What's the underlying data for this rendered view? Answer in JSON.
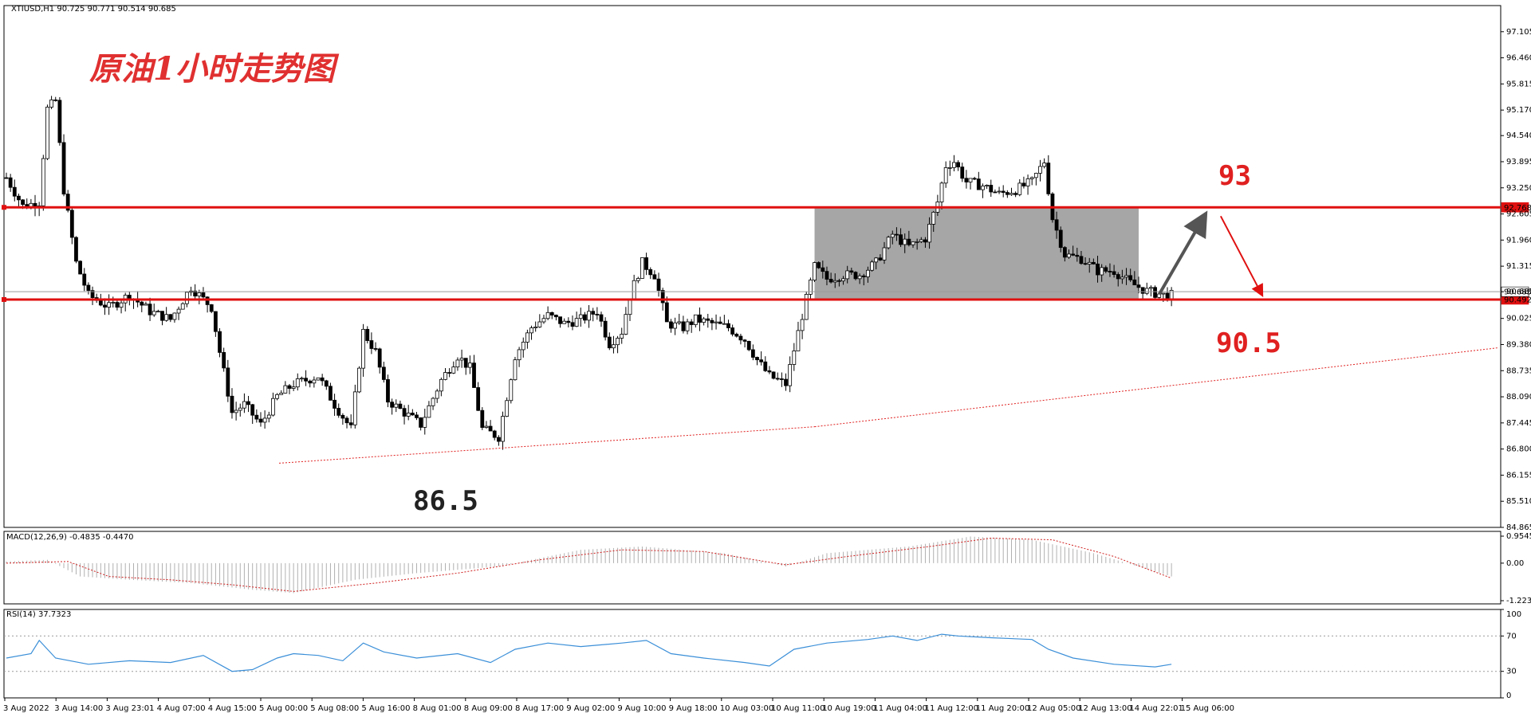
{
  "header": {
    "symbol_info": "XTIUSD,H1  90.725 90.771 90.514 90.685",
    "macd_label": "MACD(12,26,9) -0.4835 -0.4470",
    "rsi_label": "RSI(14) 37.7323"
  },
  "chart_data": {
    "type": "candlestick",
    "title": "原油1小时走势图",
    "price_axis": {
      "ylim": [
        84.865,
        97.75
      ],
      "ticks": [
        "97.105",
        "96.460",
        "95.815",
        "95.170",
        "94.540",
        "93.895",
        "93.250",
        "92.605",
        "91.960",
        "91.315",
        "90.685",
        "90.025",
        "89.380",
        "88.735",
        "88.090",
        "87.445",
        "86.800",
        "86.155",
        "85.510",
        "84.865"
      ]
    },
    "resistance": {
      "value": 92.768,
      "label": "92.768"
    },
    "support": {
      "value": 90.492,
      "label": "90.492"
    },
    "current_price": {
      "value": 90.685,
      "label": "90.685"
    },
    "annotations": {
      "top_target": "93",
      "bottom_target": "90.5",
      "low_mark": "86.5"
    },
    "x_ticks": [
      "3 Aug 2022",
      "3 Aug 14:00",
      "3 Aug 23:01",
      "4 Aug 07:00",
      "4 Aug 15:00",
      "5 Aug 00:00",
      "5 Aug 08:00",
      "5 Aug 16:00",
      "8 Aug 01:00",
      "8 Aug 09:00",
      "8 Aug 17:00",
      "9 Aug 02:00",
      "9 Aug 10:00",
      "9 Aug 18:00",
      "10 Aug 03:00",
      "10 Aug 11:00",
      "10 Aug 19:00",
      "11 Aug 04:00",
      "11 Aug 12:00",
      "11 Aug 20:00",
      "12 Aug 05:00",
      "12 Aug 13:00",
      "14 Aug 22:01",
      "15 Aug 06:00"
    ],
    "close_path": [
      [
        0,
        93.5
      ],
      [
        4,
        92.8
      ],
      [
        8,
        92.9
      ],
      [
        10,
        95.2
      ],
      [
        12,
        95.4
      ],
      [
        14,
        93.2
      ],
      [
        17,
        91.4
      ],
      [
        20,
        90.6
      ],
      [
        25,
        90.3
      ],
      [
        30,
        90.6
      ],
      [
        35,
        90.2
      ],
      [
        40,
        90.0
      ],
      [
        45,
        90.8
      ],
      [
        50,
        90.3
      ],
      [
        52,
        89.2
      ],
      [
        55,
        87.7
      ],
      [
        58,
        87.9
      ],
      [
        62,
        87.4
      ],
      [
        66,
        88.1
      ],
      [
        70,
        88.4
      ],
      [
        76,
        88.6
      ],
      [
        80,
        87.9
      ],
      [
        84,
        87.3
      ],
      [
        87,
        89.7
      ],
      [
        90,
        89.2
      ],
      [
        93,
        88.0
      ],
      [
        97,
        87.7
      ],
      [
        101,
        87.4
      ],
      [
        106,
        88.5
      ],
      [
        110,
        89.1
      ],
      [
        113,
        88.8
      ],
      [
        116,
        87.3
      ],
      [
        120,
        87.1
      ],
      [
        124,
        89.1
      ],
      [
        128,
        89.8
      ],
      [
        132,
        90.1
      ],
      [
        136,
        89.9
      ],
      [
        140,
        90.0
      ],
      [
        144,
        90.2
      ],
      [
        147,
        89.4
      ],
      [
        150,
        89.7
      ],
      [
        152,
        90.6
      ],
      [
        155,
        91.4
      ],
      [
        158,
        91.1
      ],
      [
        161,
        89.9
      ],
      [
        165,
        89.8
      ],
      [
        168,
        90.0
      ],
      [
        172,
        89.9
      ],
      [
        176,
        89.8
      ],
      [
        180,
        89.5
      ],
      [
        183,
        89.0
      ],
      [
        186,
        88.6
      ],
      [
        190,
        88.4
      ],
      [
        194,
        90.1
      ],
      [
        197,
        91.3
      ],
      [
        200,
        91.0
      ],
      [
        204,
        91.1
      ],
      [
        208,
        91.1
      ],
      [
        212,
        91.4
      ],
      [
        216,
        92.1
      ],
      [
        220,
        91.8
      ],
      [
        224,
        92.0
      ],
      [
        227,
        92.9
      ],
      [
        229,
        93.8
      ],
      [
        231,
        93.9
      ],
      [
        234,
        93.4
      ],
      [
        238,
        93.3
      ],
      [
        242,
        93.1
      ],
      [
        246,
        93.2
      ],
      [
        250,
        93.4
      ],
      [
        253,
        93.9
      ],
      [
        255,
        92.5
      ],
      [
        258,
        91.6
      ],
      [
        262,
        91.5
      ],
      [
        266,
        91.2
      ],
      [
        270,
        91.2
      ],
      [
        274,
        90.9
      ],
      [
        278,
        90.7
      ],
      [
        282,
        90.6
      ],
      [
        284,
        90.6
      ]
    ],
    "macd": {
      "ylim": [
        -1.2237,
        0.9545
      ],
      "tick_labels": [
        "0.9545",
        "0.00",
        "-1.2237"
      ],
      "hist": [
        [
          0,
          0.05
        ],
        [
          10,
          0.1
        ],
        [
          18,
          -0.4
        ],
        [
          30,
          -0.5
        ],
        [
          45,
          -0.6
        ],
        [
          60,
          -0.8
        ],
        [
          70,
          -0.9
        ],
        [
          85,
          -0.5
        ],
        [
          100,
          -0.3
        ],
        [
          120,
          -0.1
        ],
        [
          140,
          0.4
        ],
        [
          155,
          0.5
        ],
        [
          175,
          0.3
        ],
        [
          190,
          -0.1
        ],
        [
          200,
          0.3
        ],
        [
          220,
          0.5
        ],
        [
          235,
          0.8
        ],
        [
          250,
          0.7
        ],
        [
          265,
          0.3
        ],
        [
          284,
          -0.4
        ]
      ],
      "signal": [
        [
          0,
          0.0
        ],
        [
          15,
          0.05
        ],
        [
          25,
          -0.4
        ],
        [
          40,
          -0.5
        ],
        [
          55,
          -0.65
        ],
        [
          70,
          -0.85
        ],
        [
          90,
          -0.6
        ],
        [
          110,
          -0.3
        ],
        [
          130,
          0.1
        ],
        [
          150,
          0.4
        ],
        [
          170,
          0.35
        ],
        [
          190,
          -0.05
        ],
        [
          205,
          0.2
        ],
        [
          225,
          0.5
        ],
        [
          240,
          0.75
        ],
        [
          255,
          0.7
        ],
        [
          270,
          0.2
        ],
        [
          284,
          -0.45
        ]
      ]
    },
    "rsi": {
      "ylim": [
        0,
        100
      ],
      "levels": [
        70,
        30
      ],
      "tick_labels": [
        "100",
        "70",
        "30",
        "0"
      ],
      "values": [
        [
          0,
          45
        ],
        [
          6,
          50
        ],
        [
          8,
          65
        ],
        [
          12,
          45
        ],
        [
          20,
          38
        ],
        [
          30,
          42
        ],
        [
          40,
          40
        ],
        [
          48,
          48
        ],
        [
          55,
          30
        ],
        [
          60,
          32
        ],
        [
          66,
          45
        ],
        [
          70,
          50
        ],
        [
          76,
          48
        ],
        [
          82,
          42
        ],
        [
          87,
          62
        ],
        [
          92,
          52
        ],
        [
          100,
          45
        ],
        [
          110,
          50
        ],
        [
          118,
          40
        ],
        [
          124,
          55
        ],
        [
          132,
          62
        ],
        [
          140,
          58
        ],
        [
          150,
          62
        ],
        [
          156,
          65
        ],
        [
          162,
          50
        ],
        [
          170,
          45
        ],
        [
          180,
          40
        ],
        [
          186,
          36
        ],
        [
          192,
          55
        ],
        [
          200,
          62
        ],
        [
          210,
          66
        ],
        [
          216,
          70
        ],
        [
          222,
          65
        ],
        [
          228,
          72
        ],
        [
          232,
          70
        ],
        [
          240,
          68
        ],
        [
          250,
          66
        ],
        [
          254,
          55
        ],
        [
          260,
          45
        ],
        [
          270,
          38
        ],
        [
          280,
          35
        ],
        [
          284,
          38
        ]
      ]
    }
  }
}
